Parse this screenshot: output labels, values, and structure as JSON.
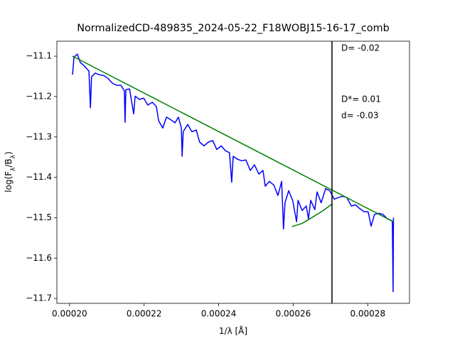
{
  "chart_data": {
    "type": "line",
    "title": "NormalizedCD-489835_2024-05-22_F18WOBJ15-16-17_comb",
    "xlabel": "1/λ [Å]",
    "ylabel": "log(Fλ/Bλ)",
    "xlim": [
      0.0001966,
      0.0002912
    ],
    "ylim": [
      -11.712,
      -11.063
    ],
    "xticks": [
      {
        "value": 0.0002,
        "label": "0.00020"
      },
      {
        "value": 0.00022,
        "label": "0.00022"
      },
      {
        "value": 0.00024,
        "label": "0.00024"
      },
      {
        "value": 0.00026,
        "label": "0.00026"
      },
      {
        "value": 0.00028,
        "label": "0.00028"
      }
    ],
    "yticks": [
      {
        "value": -11.1,
        "label": "−11.1"
      },
      {
        "value": -11.2,
        "label": "−11.2"
      },
      {
        "value": -11.3,
        "label": "−11.3"
      },
      {
        "value": -11.4,
        "label": "−11.4"
      },
      {
        "value": -11.5,
        "label": "−11.5"
      },
      {
        "value": -11.6,
        "label": "−11.6"
      },
      {
        "value": -11.7,
        "label": "−11.7"
      }
    ],
    "grid": false,
    "series": [
      {
        "color": "#0000ff",
        "x": [
          0.0002008,
          0.0002012,
          0.0002021,
          0.0002029,
          0.0002038,
          0.0002048,
          0.0002052,
          0.0002056,
          0.0002059,
          0.0002069,
          0.000208,
          0.0002092,
          0.0002103,
          0.0002115,
          0.0002126,
          0.0002138,
          0.0002147,
          0.0002149,
          0.0002151,
          0.0002161,
          0.0002172,
          0.0002176,
          0.0002187,
          0.0002199,
          0.000221,
          0.0002222,
          0.0002233,
          0.0002239,
          0.000225,
          0.000226,
          0.0002271,
          0.0002283,
          0.0002292,
          0.00023,
          0.0002302,
          0.0002305,
          0.0002317,
          0.0002328,
          0.000234,
          0.0002349,
          0.0002361,
          0.0002372,
          0.0002384,
          0.0002395,
          0.0002407,
          0.0002418,
          0.0002429,
          0.0002435,
          0.0002439,
          0.000245,
          0.0002462,
          0.0002473,
          0.0002485,
          0.0002496,
          0.0002508,
          0.0002519,
          0.0002525,
          0.0002536,
          0.0002548,
          0.0002559,
          0.0002569,
          0.0002574,
          0.0002578,
          0.0002588,
          0.0002599,
          0.0002609,
          0.0002613,
          0.0002624,
          0.0002635,
          0.0002641,
          0.0002647,
          0.0002658,
          0.0002664,
          0.0002675,
          0.0002687,
          0.0002698,
          0.000271,
          0.0002721,
          0.0002733,
          0.0002744,
          0.0002756,
          0.0002767,
          0.0002778,
          0.000279,
          0.0002801,
          0.0002809,
          0.0002818,
          0.000283,
          0.0002841,
          0.0002853,
          0.0002864,
          0.0002866,
          0.0002868,
          0.0002869
        ],
        "values": [
          -11.146,
          -11.102,
          -11.095,
          -11.116,
          -11.123,
          -11.133,
          -11.137,
          -11.228,
          -11.151,
          -11.142,
          -11.146,
          -11.148,
          -11.155,
          -11.167,
          -11.172,
          -11.172,
          -11.186,
          -11.264,
          -11.183,
          -11.181,
          -11.243,
          -11.199,
          -11.207,
          -11.204,
          -11.221,
          -11.214,
          -11.225,
          -11.26,
          -11.278,
          -11.251,
          -11.257,
          -11.265,
          -11.251,
          -11.278,
          -11.348,
          -11.287,
          -11.269,
          -11.287,
          -11.283,
          -11.313,
          -11.322,
          -11.313,
          -11.309,
          -11.331,
          -11.322,
          -11.334,
          -11.339,
          -11.412,
          -11.348,
          -11.355,
          -11.359,
          -11.357,
          -11.383,
          -11.369,
          -11.392,
          -11.383,
          -11.422,
          -11.41,
          -11.419,
          -11.445,
          -11.41,
          -11.528,
          -11.463,
          -11.433,
          -11.459,
          -11.51,
          -11.457,
          -11.482,
          -11.471,
          -11.503,
          -11.457,
          -11.48,
          -11.436,
          -11.463,
          -11.428,
          -11.433,
          -11.454,
          -11.45,
          -11.447,
          -11.45,
          -11.471,
          -11.468,
          -11.477,
          -11.485,
          -11.485,
          -11.521,
          -11.492,
          -11.489,
          -11.492,
          -11.503,
          -11.507,
          -11.51,
          -11.683,
          -11.5
        ]
      },
      {
        "color": "#008000",
        "x": [
          0.0002008,
          0.0002869
        ],
        "values": [
          -11.1,
          -11.51
        ]
      },
      {
        "color": "#008000",
        "x": [
          0.0002597,
          0.0002624,
          0.0002653,
          0.0002681,
          0.0002704
        ],
        "values": [
          -11.522,
          -11.514,
          -11.498,
          -11.482,
          -11.466
        ]
      }
    ],
    "vlines": [
      {
        "value": 0.0002704,
        "color": "#000000"
      }
    ],
    "annotations": [
      "D= -0.02",
      "D*= 0.01",
      "d= -0.03"
    ]
  }
}
